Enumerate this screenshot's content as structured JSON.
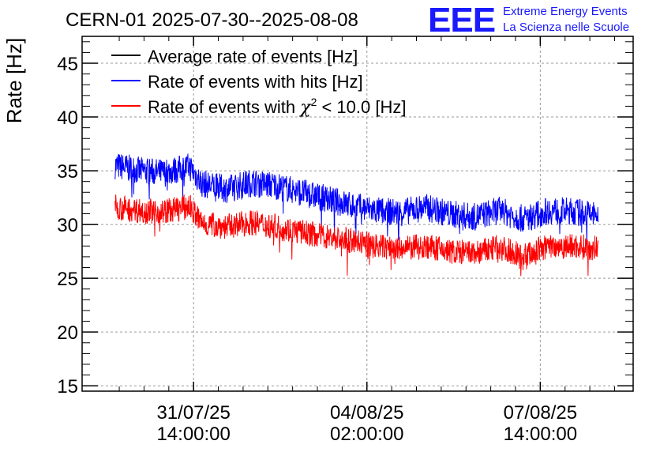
{
  "header": {
    "title": "CERN-01 2025-07-30--2025-08-08",
    "logo_text": "EEE",
    "org_line1": "Extreme Energy Events",
    "org_line2": "La Scienza nelle Scuole"
  },
  "colors": {
    "average": "#000000",
    "hits": "#0000ff",
    "chi2": "#ff0000",
    "logo": "#1a1aff",
    "grid": "#9a9a9a"
  },
  "chart_data": {
    "type": "line",
    "title": "CERN-01 2025-07-30--2025-08-08",
    "ylabel": "Rate [Hz]",
    "xlabel": "",
    "ylim": [
      14.5,
      47.5
    ],
    "yticks": [
      15,
      20,
      25,
      30,
      35,
      40,
      45
    ],
    "xlim": [
      "2025-07-29 08:00",
      "2025-08-09 11:00"
    ],
    "xticks": [
      {
        "time": "2025-07-31 14:00",
        "date": "31/07/25",
        "clock": "14:00:00"
      },
      {
        "time": "2025-08-04 02:00",
        "date": "04/08/25",
        "clock": "02:00:00"
      },
      {
        "time": "2025-08-07 14:00",
        "date": "07/08/25",
        "clock": "14:00:00"
      }
    ],
    "grid": true,
    "legend_position": "top-left",
    "legend": [
      {
        "key": "average",
        "label": "Average rate of events [Hz]"
      },
      {
        "key": "hits",
        "label": "Rate of events with hits [Hz]"
      },
      {
        "key": "chi2",
        "label_prefix": "Rate of events with ",
        "label_symbol": "χ",
        "label_sup": "2",
        "label_suffix": " < 10.0 [Hz]"
      }
    ],
    "series": [
      {
        "key": "hits",
        "name": "Rate of events with hits [Hz]",
        "x": [
          "2025-07-30 00:00",
          "2025-07-30 12:00",
          "2025-07-31 00:00",
          "2025-07-31 12:00",
          "2025-07-31 18:00",
          "2025-08-01 06:00",
          "2025-08-01 18:00",
          "2025-08-02 06:00",
          "2025-08-02 18:00",
          "2025-08-03 06:00",
          "2025-08-03 18:00",
          "2025-08-04 06:00",
          "2025-08-04 18:00",
          "2025-08-05 06:00",
          "2025-08-05 18:00",
          "2025-08-06 06:00",
          "2025-08-06 18:00",
          "2025-08-07 06:00",
          "2025-08-07 18:00",
          "2025-08-08 06:00",
          "2025-08-08 18:00"
        ],
        "y": [
          35.5,
          35.0,
          34.8,
          35.4,
          33.8,
          33.3,
          33.9,
          33.6,
          33.0,
          32.4,
          31.8,
          31.3,
          31.1,
          31.6,
          31.0,
          30.7,
          31.3,
          30.5,
          31.3,
          31.2,
          30.9
        ],
        "noise": 1.3
      },
      {
        "key": "chi2",
        "name": "Rate of events with χ2 < 10.0 [Hz]",
        "x": [
          "2025-07-30 00:00",
          "2025-07-30 12:00",
          "2025-07-31 00:00",
          "2025-07-31 12:00",
          "2025-07-31 18:00",
          "2025-08-01 06:00",
          "2025-08-01 18:00",
          "2025-08-02 06:00",
          "2025-08-02 18:00",
          "2025-08-03 06:00",
          "2025-08-03 18:00",
          "2025-08-04 06:00",
          "2025-08-04 18:00",
          "2025-08-05 06:00",
          "2025-08-05 18:00",
          "2025-08-06 06:00",
          "2025-08-06 18:00",
          "2025-08-07 06:00",
          "2025-08-07 18:00",
          "2025-08-08 06:00",
          "2025-08-08 18:00"
        ],
        "y": [
          31.6,
          31.3,
          31.2,
          31.7,
          30.1,
          29.8,
          30.2,
          29.8,
          29.3,
          28.9,
          28.5,
          28.0,
          27.7,
          28.0,
          27.5,
          27.3,
          27.9,
          27.1,
          28.0,
          28.0,
          27.8
        ],
        "noise": 1.2
      }
    ]
  }
}
